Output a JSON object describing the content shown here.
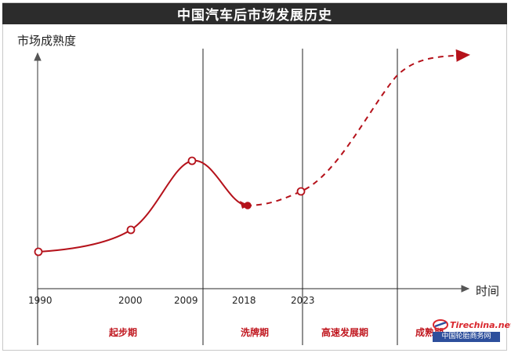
{
  "title": "中国汽车后市场发展历史",
  "chart_data": {
    "type": "line",
    "title": "中国汽车后市场发展历史",
    "ylabel": "市场成熟度",
    "xlabel": "时间",
    "x_ticks": [
      "1990",
      "2000",
      "2009",
      "2018",
      "2023"
    ],
    "series": [
      {
        "style": "solid",
        "points": [
          {
            "x": "1990",
            "y": 0.12
          },
          {
            "x": "2000",
            "y": 0.25
          },
          {
            "x": "2009",
            "y": 0.55
          },
          {
            "x": "2018",
            "y": 0.35
          }
        ]
      },
      {
        "style": "dashed",
        "points": [
          {
            "x": "2018",
            "y": 0.35
          },
          {
            "x": "2023",
            "y": 0.42
          }
        ]
      }
    ],
    "phases": [
      "起步期",
      "洗牌期",
      "高速发展期",
      "成熟期"
    ],
    "colors": {
      "line": "#b5121b",
      "axis": "#555555",
      "divider": "#222222"
    }
  },
  "watermark": {
    "brand": "Tirechina",
    "brand_suffix": ".net",
    "subtitle": "中国轮胎商务网"
  }
}
